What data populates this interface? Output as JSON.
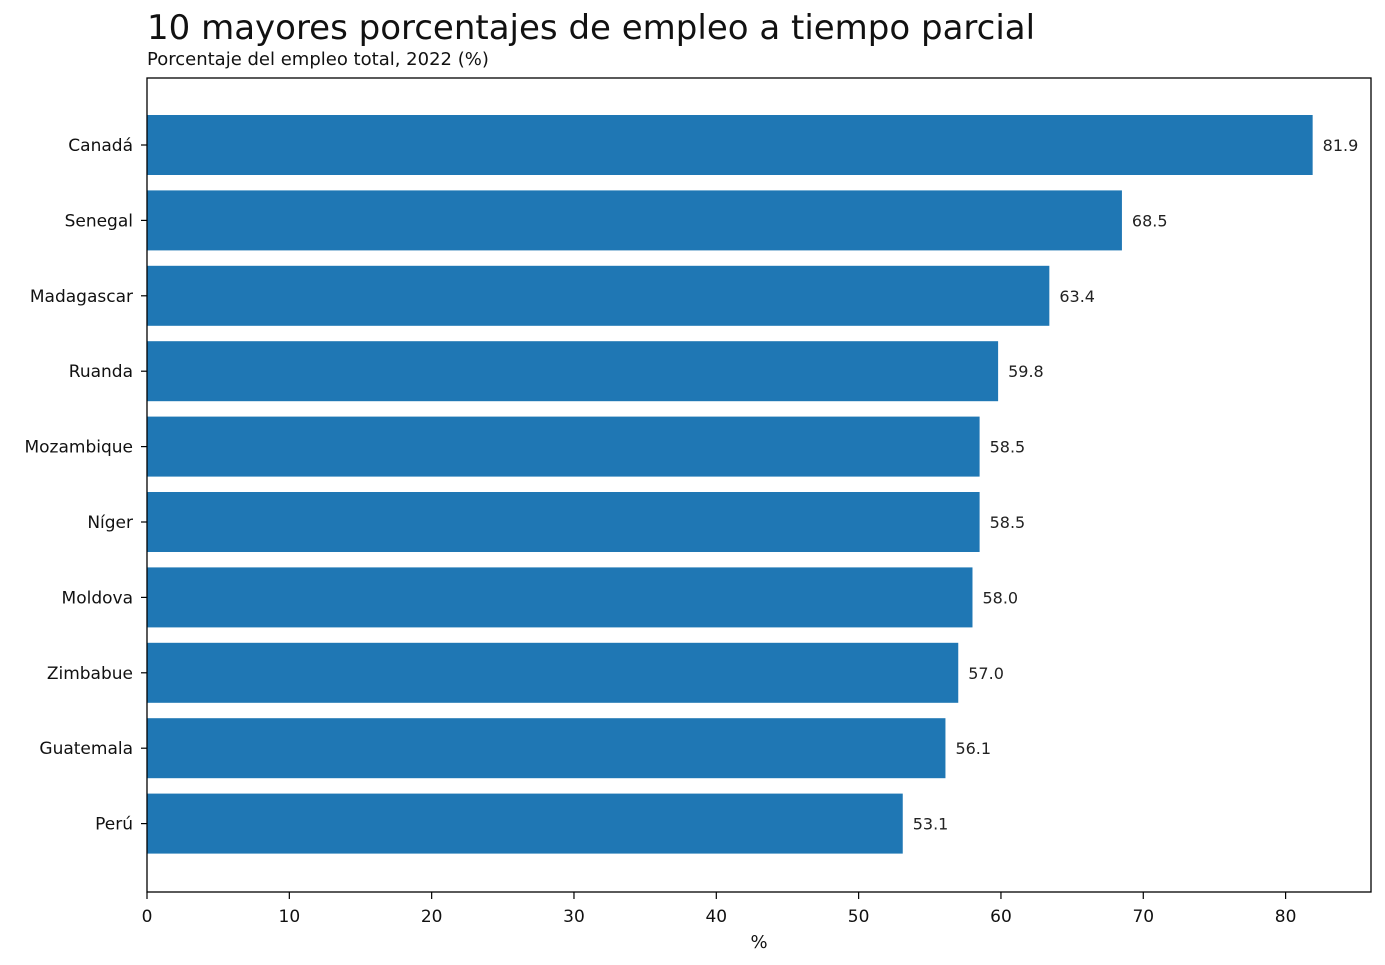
{
  "chart_data": {
    "type": "bar",
    "orientation": "horizontal",
    "title": "10 mayores porcentajes de empleo a tiempo parcial",
    "subtitle": "Porcentaje del empleo total, 2022 (%)",
    "xlabel": "%",
    "ylabel": "",
    "categories": [
      "Canadá",
      "Senegal",
      "Madagascar",
      "Ruanda",
      "Mozambique",
      "Níger",
      "Moldova",
      "Zimbabue",
      "Guatemala",
      "Perú"
    ],
    "values": [
      81.9,
      68.5,
      63.4,
      59.8,
      58.5,
      58.5,
      58.0,
      57.0,
      56.1,
      53.1
    ],
    "data_labels": [
      "81.9",
      "68.5",
      "63.4",
      "59.8",
      "58.5",
      "58.5",
      "58.0",
      "57.0",
      "56.1",
      "53.1"
    ],
    "xlim": [
      0,
      86
    ],
    "xticks": [
      0,
      10,
      20,
      30,
      40,
      50,
      60,
      70,
      80
    ],
    "bar_color": "#1f77b4",
    "grid": false,
    "legend": "none"
  }
}
